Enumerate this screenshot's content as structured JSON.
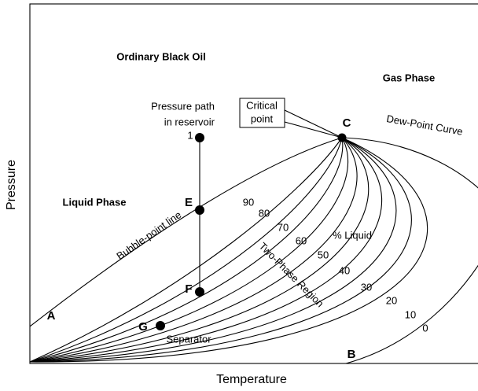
{
  "title": "Ordinary Black Oil",
  "axes": {
    "x_label": "Temperature",
    "y_label": "Pressure"
  },
  "regions": {
    "gas": "Gas Phase",
    "liquid": "Liquid Phase",
    "two_phase": "Two-Phase Region",
    "percent_liquid": "% Liquid"
  },
  "curves": {
    "bubble_point": "Bubble-point line",
    "dew_point": "Dew-Point Curve"
  },
  "pressure_path": {
    "line1": "Pressure path",
    "line2": "in reservoir"
  },
  "critical_point": {
    "line1": "Critical",
    "line2": "point"
  },
  "points": {
    "one": "1",
    "c": "C",
    "e": "E",
    "f": "F",
    "g": "G",
    "a": "A",
    "b": "B"
  },
  "separator": "Separator",
  "liquid_percent_lines": [
    90,
    80,
    70,
    60,
    50,
    40,
    30,
    20,
    10,
    0
  ]
}
